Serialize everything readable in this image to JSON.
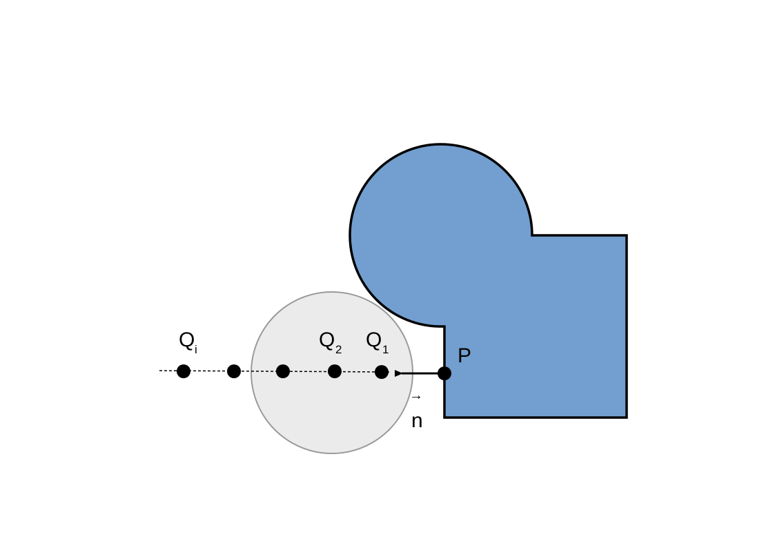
{
  "labels": {
    "qi": {
      "letter": "Q",
      "sub": "i"
    },
    "q2": {
      "letter": "Q",
      "sub": "2"
    },
    "q1": {
      "letter": "Q",
      "sub": "1"
    },
    "p": "P",
    "n": "n",
    "n_arrow": "→"
  },
  "colors": {
    "shape_fill": "#729fcf",
    "shape_stroke": "#000000",
    "circle_fill": "#ebebeb",
    "circle_stroke": "#9a9a9a",
    "point": "#000000"
  }
}
